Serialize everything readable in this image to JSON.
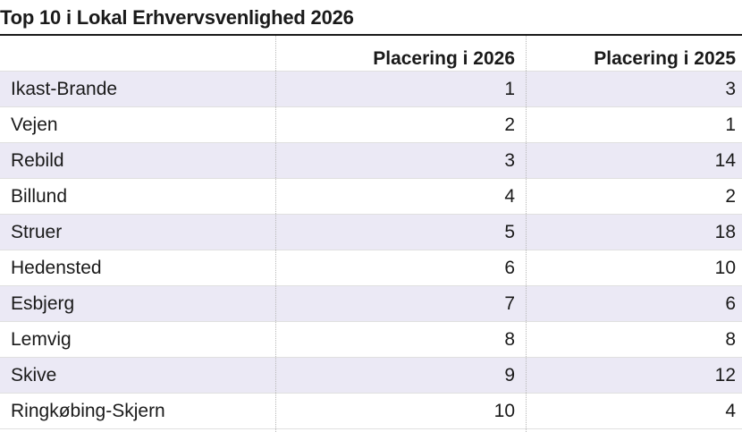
{
  "chart_data": {
    "type": "table",
    "title": "Top 10 i Lokal Erhvervsvenlighed 2026",
    "columns": [
      "",
      "Placering i 2026",
      "Placering i 2025"
    ],
    "rows": [
      {
        "name": "Ikast-Brande",
        "rank_2026": "1",
        "rank_2025": "3"
      },
      {
        "name": "Vejen",
        "rank_2026": "2",
        "rank_2025": "1"
      },
      {
        "name": "Rebild",
        "rank_2026": "3",
        "rank_2025": "14"
      },
      {
        "name": "Billund",
        "rank_2026": "4",
        "rank_2025": "2"
      },
      {
        "name": "Struer",
        "rank_2026": "5",
        "rank_2025": "18"
      },
      {
        "name": "Hedensted",
        "rank_2026": "6",
        "rank_2025": "10"
      },
      {
        "name": "Esbjerg",
        "rank_2026": "7",
        "rank_2025": "6"
      },
      {
        "name": "Lemvig",
        "rank_2026": "8",
        "rank_2025": "8"
      },
      {
        "name": "Skive",
        "rank_2026": "9",
        "rank_2025": "12"
      },
      {
        "name": "Ringkøbing-Skjern",
        "rank_2026": "10",
        "rank_2025": "4"
      }
    ]
  },
  "colors": {
    "row_shade": "#ebe9f5",
    "text": "#1a1a1a"
  }
}
